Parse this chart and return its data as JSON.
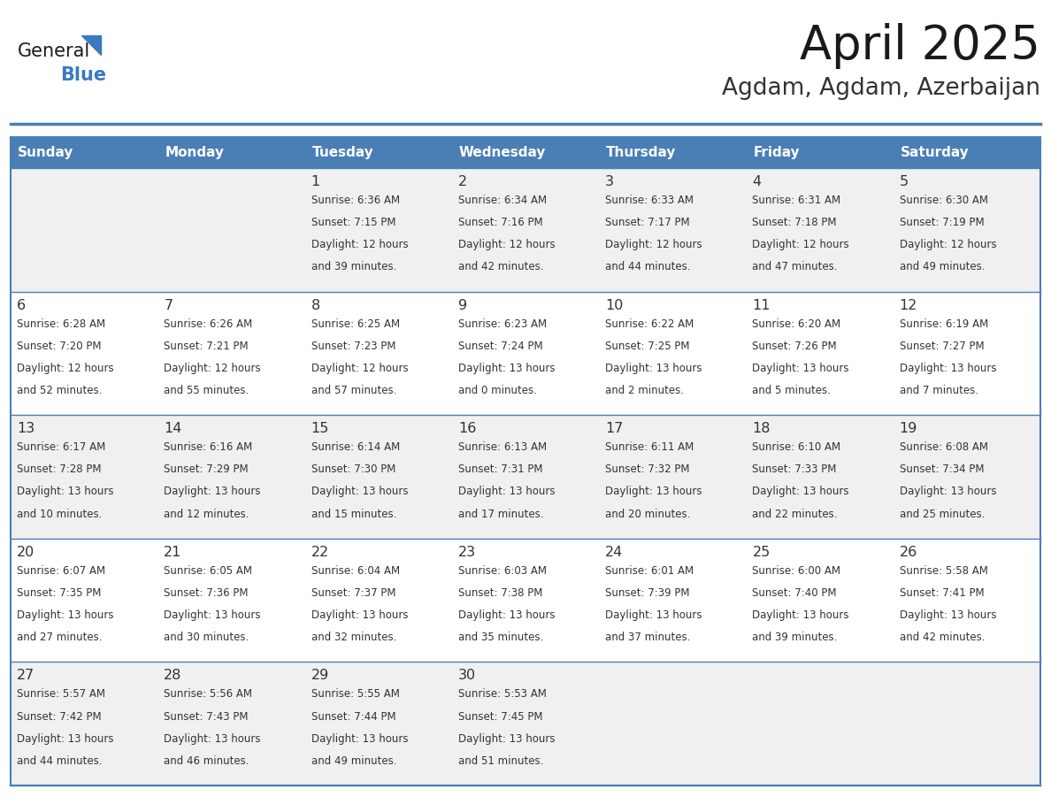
{
  "title": "April 2025",
  "subtitle": "Agdam, Agdam, Azerbaijan",
  "days_of_week": [
    "Sunday",
    "Monday",
    "Tuesday",
    "Wednesday",
    "Thursday",
    "Friday",
    "Saturday"
  ],
  "header_bg": "#4a7fb5",
  "header_text": "#ffffff",
  "cell_bg_even": "#f0f0f0",
  "cell_bg_odd": "#ffffff",
  "cell_text": "#333333",
  "title_color": "#1a1a1a",
  "subtitle_color": "#333333",
  "grid_line_color": "#4a7fb5",
  "logo_general_color": "#1a1a1a",
  "logo_blue_color": "#3a7abf",
  "fig_width": 11.88,
  "fig_height": 9.18,
  "dpi": 100,
  "calendar": [
    [
      {
        "day": null,
        "sunrise": null,
        "sunset": null,
        "daylight": null
      },
      {
        "day": null,
        "sunrise": null,
        "sunset": null,
        "daylight": null
      },
      {
        "day": 1,
        "sunrise": "6:36 AM",
        "sunset": "7:15 PM",
        "daylight": "12 hours and 39 minutes."
      },
      {
        "day": 2,
        "sunrise": "6:34 AM",
        "sunset": "7:16 PM",
        "daylight": "12 hours and 42 minutes."
      },
      {
        "day": 3,
        "sunrise": "6:33 AM",
        "sunset": "7:17 PM",
        "daylight": "12 hours and 44 minutes."
      },
      {
        "day": 4,
        "sunrise": "6:31 AM",
        "sunset": "7:18 PM",
        "daylight": "12 hours and 47 minutes."
      },
      {
        "day": 5,
        "sunrise": "6:30 AM",
        "sunset": "7:19 PM",
        "daylight": "12 hours and 49 minutes."
      }
    ],
    [
      {
        "day": 6,
        "sunrise": "6:28 AM",
        "sunset": "7:20 PM",
        "daylight": "12 hours and 52 minutes."
      },
      {
        "day": 7,
        "sunrise": "6:26 AM",
        "sunset": "7:21 PM",
        "daylight": "12 hours and 55 minutes."
      },
      {
        "day": 8,
        "sunrise": "6:25 AM",
        "sunset": "7:23 PM",
        "daylight": "12 hours and 57 minutes."
      },
      {
        "day": 9,
        "sunrise": "6:23 AM",
        "sunset": "7:24 PM",
        "daylight": "13 hours and 0 minutes."
      },
      {
        "day": 10,
        "sunrise": "6:22 AM",
        "sunset": "7:25 PM",
        "daylight": "13 hours and 2 minutes."
      },
      {
        "day": 11,
        "sunrise": "6:20 AM",
        "sunset": "7:26 PM",
        "daylight": "13 hours and 5 minutes."
      },
      {
        "day": 12,
        "sunrise": "6:19 AM",
        "sunset": "7:27 PM",
        "daylight": "13 hours and 7 minutes."
      }
    ],
    [
      {
        "day": 13,
        "sunrise": "6:17 AM",
        "sunset": "7:28 PM",
        "daylight": "13 hours and 10 minutes."
      },
      {
        "day": 14,
        "sunrise": "6:16 AM",
        "sunset": "7:29 PM",
        "daylight": "13 hours and 12 minutes."
      },
      {
        "day": 15,
        "sunrise": "6:14 AM",
        "sunset": "7:30 PM",
        "daylight": "13 hours and 15 minutes."
      },
      {
        "day": 16,
        "sunrise": "6:13 AM",
        "sunset": "7:31 PM",
        "daylight": "13 hours and 17 minutes."
      },
      {
        "day": 17,
        "sunrise": "6:11 AM",
        "sunset": "7:32 PM",
        "daylight": "13 hours and 20 minutes."
      },
      {
        "day": 18,
        "sunrise": "6:10 AM",
        "sunset": "7:33 PM",
        "daylight": "13 hours and 22 minutes."
      },
      {
        "day": 19,
        "sunrise": "6:08 AM",
        "sunset": "7:34 PM",
        "daylight": "13 hours and 25 minutes."
      }
    ],
    [
      {
        "day": 20,
        "sunrise": "6:07 AM",
        "sunset": "7:35 PM",
        "daylight": "13 hours and 27 minutes."
      },
      {
        "day": 21,
        "sunrise": "6:05 AM",
        "sunset": "7:36 PM",
        "daylight": "13 hours and 30 minutes."
      },
      {
        "day": 22,
        "sunrise": "6:04 AM",
        "sunset": "7:37 PM",
        "daylight": "13 hours and 32 minutes."
      },
      {
        "day": 23,
        "sunrise": "6:03 AM",
        "sunset": "7:38 PM",
        "daylight": "13 hours and 35 minutes."
      },
      {
        "day": 24,
        "sunrise": "6:01 AM",
        "sunset": "7:39 PM",
        "daylight": "13 hours and 37 minutes."
      },
      {
        "day": 25,
        "sunrise": "6:00 AM",
        "sunset": "7:40 PM",
        "daylight": "13 hours and 39 minutes."
      },
      {
        "day": 26,
        "sunrise": "5:58 AM",
        "sunset": "7:41 PM",
        "daylight": "13 hours and 42 minutes."
      }
    ],
    [
      {
        "day": 27,
        "sunrise": "5:57 AM",
        "sunset": "7:42 PM",
        "daylight": "13 hours and 44 minutes."
      },
      {
        "day": 28,
        "sunrise": "5:56 AM",
        "sunset": "7:43 PM",
        "daylight": "13 hours and 46 minutes."
      },
      {
        "day": 29,
        "sunrise": "5:55 AM",
        "sunset": "7:44 PM",
        "daylight": "13 hours and 49 minutes."
      },
      {
        "day": 30,
        "sunrise": "5:53 AM",
        "sunset": "7:45 PM",
        "daylight": "13 hours and 51 minutes."
      },
      {
        "day": null,
        "sunrise": null,
        "sunset": null,
        "daylight": null
      },
      {
        "day": null,
        "sunrise": null,
        "sunset": null,
        "daylight": null
      },
      {
        "day": null,
        "sunrise": null,
        "sunset": null,
        "daylight": null
      }
    ]
  ]
}
